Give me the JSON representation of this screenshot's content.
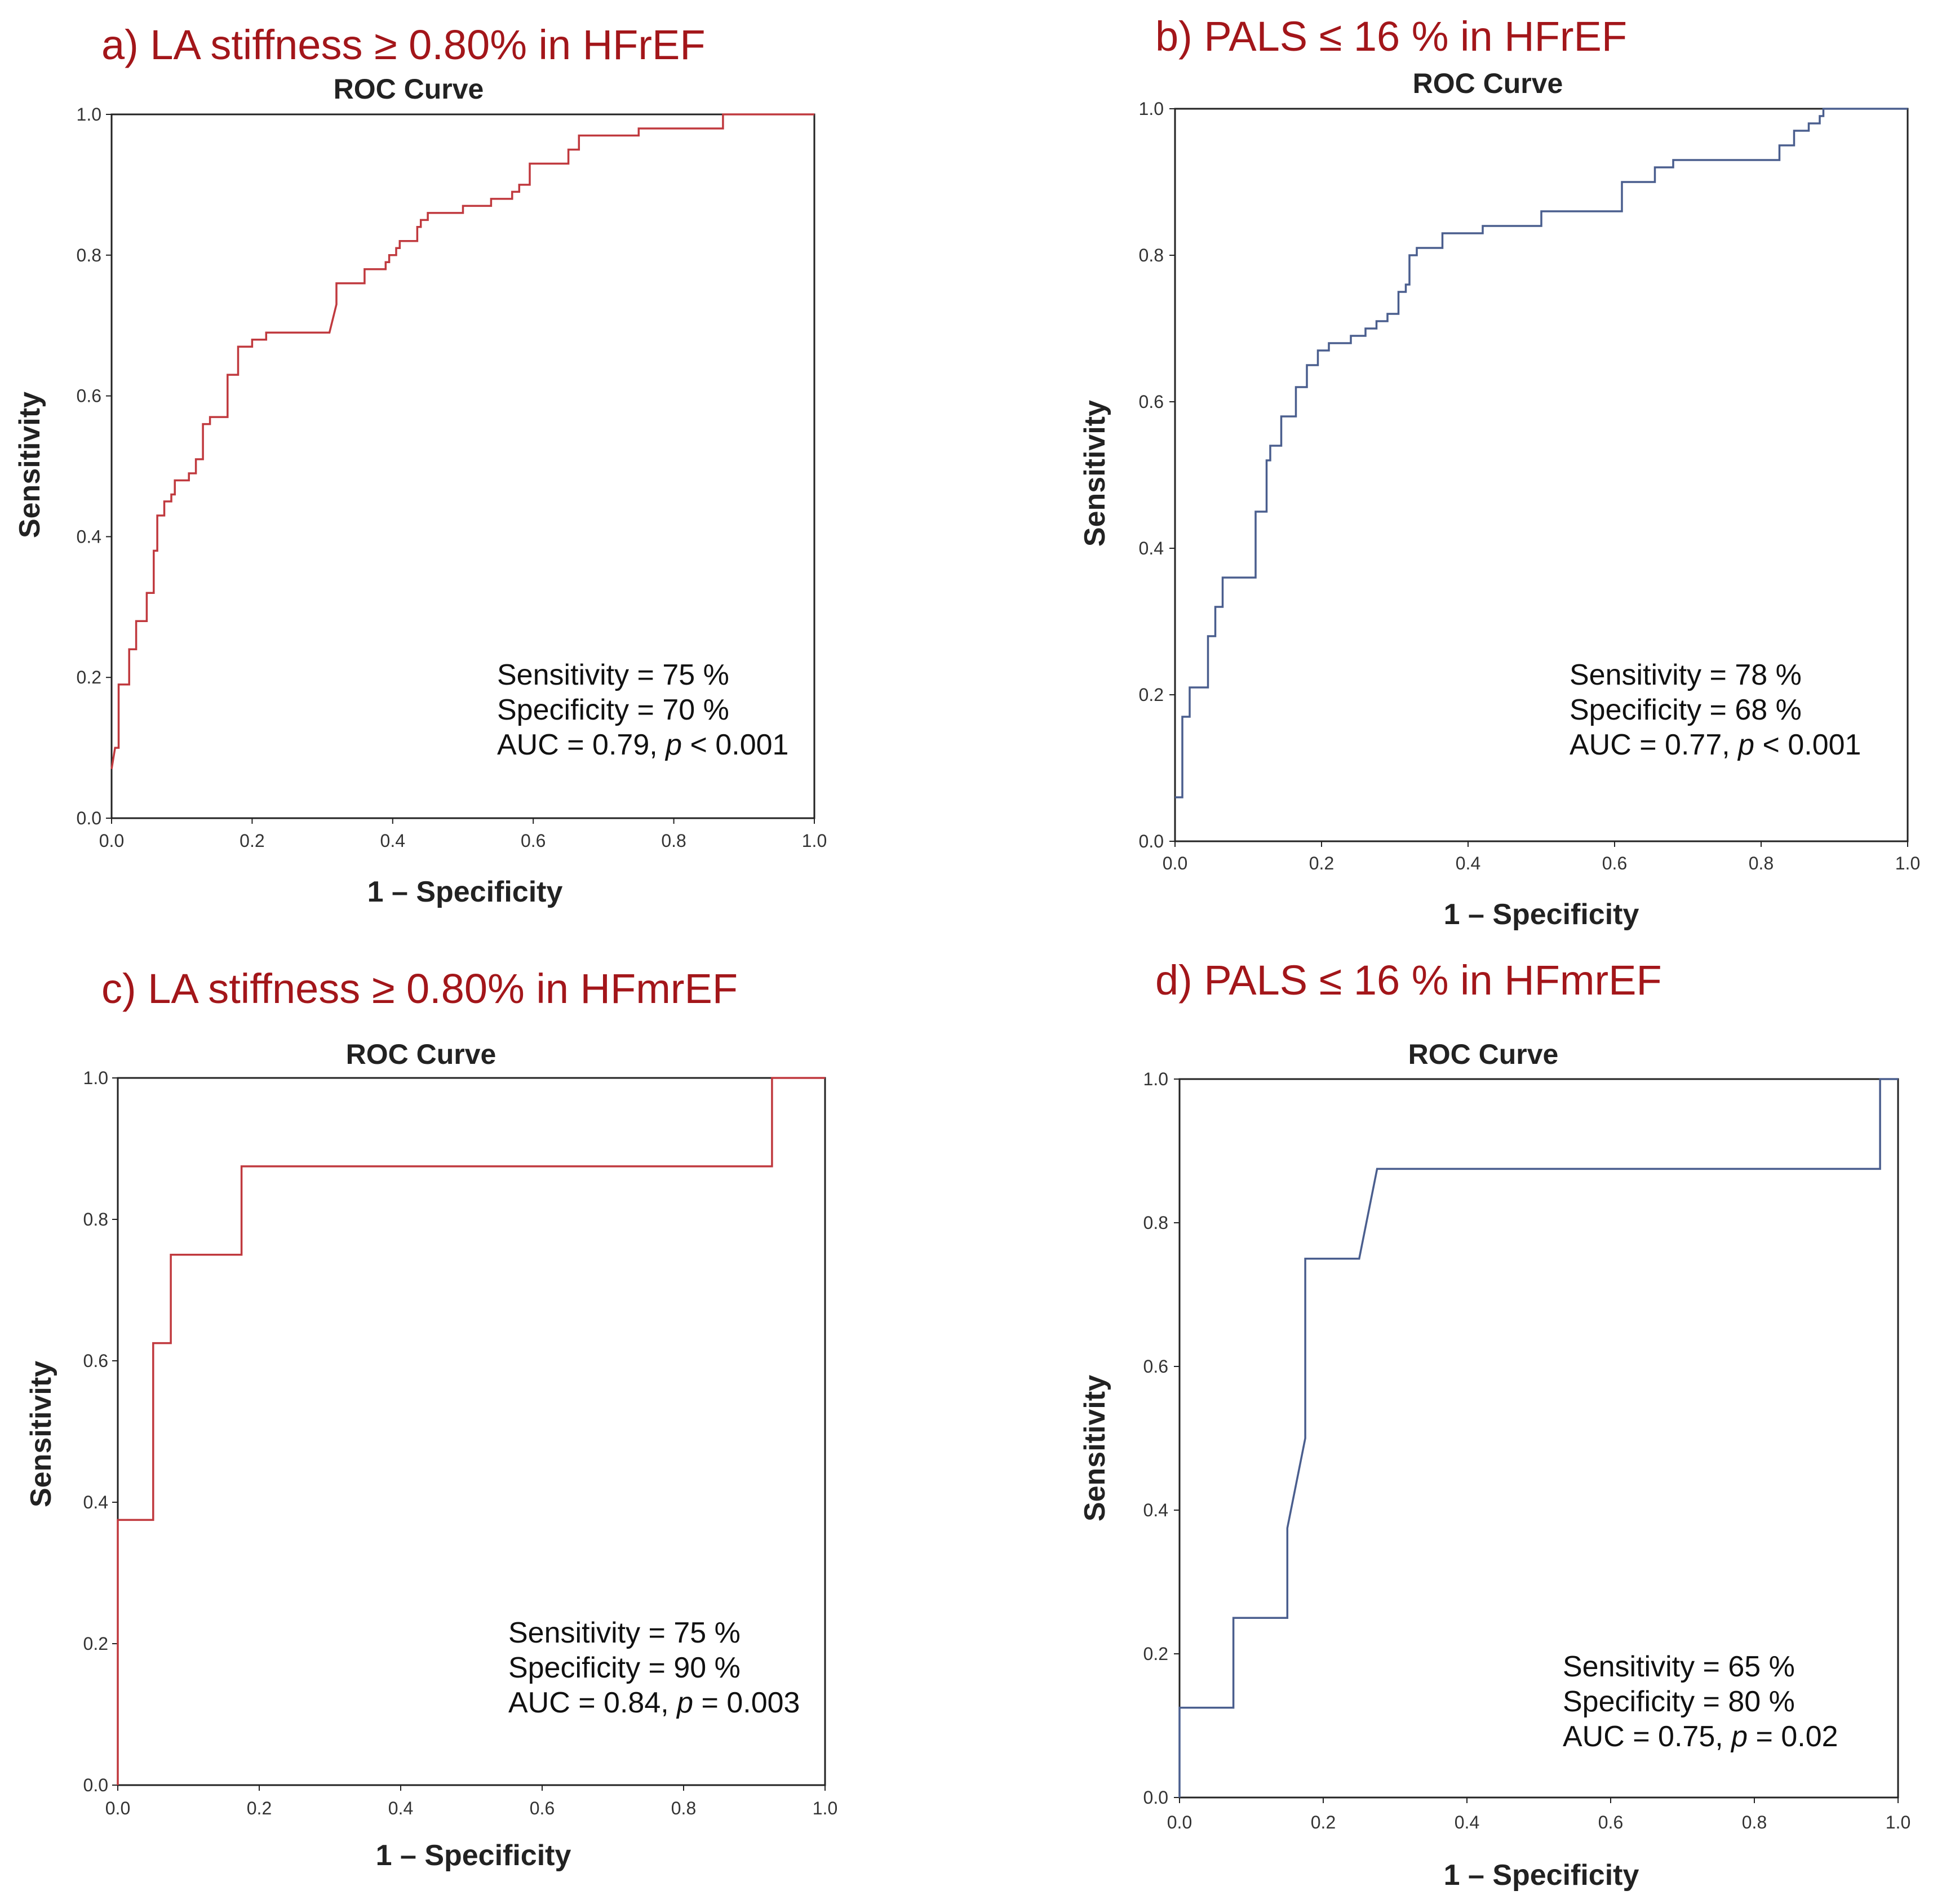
{
  "chart_data": [
    {
      "type": "line",
      "panel_title": "a) LA stiffness ≥ 0.80% in HFrEF",
      "title": "ROC Curve",
      "xlabel": "1 – Specificity",
      "ylabel": "Sensitivity",
      "xlim": [
        0,
        1
      ],
      "ylim": [
        0,
        1
      ],
      "xticks": [
        "0.0",
        "0.2",
        "0.4",
        "0.6",
        "0.8",
        "1.0"
      ],
      "yticks": [
        "0.0",
        "0.2",
        "0.4",
        "0.6",
        "0.8",
        "1.0"
      ],
      "grid": false,
      "line_color": "#c0393e",
      "series": [
        {
          "name": "LA stiffness",
          "x": [
            0.0,
            0.005,
            0.01,
            0.01,
            0.025,
            0.025,
            0.035,
            0.035,
            0.05,
            0.05,
            0.06,
            0.06,
            0.065,
            0.065,
            0.075,
            0.075,
            0.085,
            0.085,
            0.09,
            0.09,
            0.11,
            0.11,
            0.12,
            0.12,
            0.13,
            0.13,
            0.14,
            0.14,
            0.165,
            0.165,
            0.18,
            0.18,
            0.2,
            0.2,
            0.22,
            0.22,
            0.31,
            0.32,
            0.32,
            0.36,
            0.36,
            0.39,
            0.39,
            0.395,
            0.395,
            0.405,
            0.405,
            0.41,
            0.41,
            0.435,
            0.435,
            0.44,
            0.44,
            0.45,
            0.45,
            0.5,
            0.5,
            0.54,
            0.54,
            0.57,
            0.57,
            0.58,
            0.58,
            0.595,
            0.595,
            0.65,
            0.65,
            0.665,
            0.665,
            0.75,
            0.75,
            0.87,
            0.87,
            1.0
          ],
          "y": [
            0.07,
            0.1,
            0.1,
            0.19,
            0.19,
            0.24,
            0.24,
            0.28,
            0.28,
            0.32,
            0.32,
            0.38,
            0.38,
            0.43,
            0.43,
            0.45,
            0.45,
            0.46,
            0.46,
            0.48,
            0.48,
            0.49,
            0.49,
            0.51,
            0.51,
            0.56,
            0.56,
            0.57,
            0.57,
            0.63,
            0.63,
            0.67,
            0.67,
            0.68,
            0.68,
            0.69,
            0.69,
            0.73,
            0.76,
            0.76,
            0.78,
            0.78,
            0.79,
            0.79,
            0.8,
            0.8,
            0.81,
            0.81,
            0.82,
            0.82,
            0.84,
            0.84,
            0.85,
            0.85,
            0.86,
            0.86,
            0.87,
            0.87,
            0.88,
            0.88,
            0.89,
            0.89,
            0.9,
            0.9,
            0.93,
            0.93,
            0.95,
            0.95,
            0.97,
            0.97,
            0.98,
            0.98,
            1.0,
            1.0
          ]
        }
      ],
      "annotation": {
        "sensitivity": "Sensitivity = 75 %",
        "specificity": "Specificity = 70 %",
        "auc_prefix": "AUC = 0.79, ",
        "p_symbol": "p",
        "p_value": " < 0.001"
      }
    },
    {
      "type": "line",
      "panel_title": "b) PALS ≤ 16 % in HFrEF",
      "title": "ROC Curve",
      "xlabel": "1 – Specificity",
      "ylabel": "Sensitivity",
      "xlim": [
        0,
        1
      ],
      "ylim": [
        0,
        1
      ],
      "xticks": [
        "0.0",
        "0.2",
        "0.4",
        "0.6",
        "0.8",
        "1.0"
      ],
      "yticks": [
        "0.0",
        "0.2",
        "0.4",
        "0.6",
        "0.8",
        "1.0"
      ],
      "grid": false,
      "line_color": "#4a5e8e",
      "series": [
        {
          "name": "PALS",
          "x": [
            0.0,
            0.01,
            0.01,
            0.02,
            0.02,
            0.045,
            0.045,
            0.055,
            0.055,
            0.065,
            0.065,
            0.11,
            0.11,
            0.125,
            0.125,
            0.13,
            0.13,
            0.145,
            0.145,
            0.165,
            0.165,
            0.18,
            0.18,
            0.195,
            0.195,
            0.21,
            0.21,
            0.24,
            0.24,
            0.26,
            0.26,
            0.275,
            0.275,
            0.29,
            0.29,
            0.305,
            0.305,
            0.315,
            0.315,
            0.32,
            0.32,
            0.33,
            0.33,
            0.365,
            0.365,
            0.42,
            0.42,
            0.5,
            0.5,
            0.61,
            0.61,
            0.655,
            0.655,
            0.68,
            0.68,
            0.825,
            0.825,
            0.845,
            0.845,
            0.865,
            0.865,
            0.88,
            0.88,
            0.885,
            0.885,
            1.0
          ],
          "y": [
            0.06,
            0.06,
            0.17,
            0.17,
            0.21,
            0.21,
            0.28,
            0.28,
            0.32,
            0.32,
            0.36,
            0.36,
            0.45,
            0.45,
            0.52,
            0.52,
            0.54,
            0.54,
            0.58,
            0.58,
            0.62,
            0.62,
            0.65,
            0.65,
            0.67,
            0.67,
            0.68,
            0.68,
            0.69,
            0.69,
            0.7,
            0.7,
            0.71,
            0.71,
            0.72,
            0.72,
            0.75,
            0.75,
            0.76,
            0.76,
            0.8,
            0.8,
            0.81,
            0.81,
            0.83,
            0.83,
            0.84,
            0.84,
            0.86,
            0.86,
            0.9,
            0.9,
            0.92,
            0.92,
            0.93,
            0.93,
            0.95,
            0.95,
            0.97,
            0.97,
            0.98,
            0.98,
            0.99,
            0.99,
            1.0,
            1.0
          ]
        }
      ],
      "annotation": {
        "sensitivity": "Sensitivity = 78 %",
        "specificity": "Specificity = 68 %",
        "auc_prefix": "AUC = 0.77, ",
        "p_symbol": "p",
        "p_value": " < 0.001"
      }
    },
    {
      "type": "line",
      "panel_title": "c) LA stiffness ≥ 0.80% in HFmrEF",
      "title": "ROC Curve",
      "xlabel": "1 – Specificity",
      "ylabel": "Sensitivity",
      "xlim": [
        0,
        1
      ],
      "ylim": [
        0,
        1
      ],
      "xticks": [
        "0.0",
        "0.2",
        "0.4",
        "0.6",
        "0.8",
        "1.0"
      ],
      "yticks": [
        "0.0",
        "0.2",
        "0.4",
        "0.6",
        "0.8",
        "1.0"
      ],
      "grid": false,
      "line_color": "#c0393e",
      "series": [
        {
          "name": "LA stiffness",
          "x": [
            0.0,
            0.0,
            0.05,
            0.05,
            0.075,
            0.075,
            0.175,
            0.175,
            0.925,
            0.925,
            1.0
          ],
          "y": [
            0.0,
            0.375,
            0.375,
            0.625,
            0.625,
            0.75,
            0.75,
            0.875,
            0.875,
            1.0,
            1.0
          ]
        }
      ],
      "annotation": {
        "sensitivity": "Sensitivity = 75 %",
        "specificity": "Specificity = 90 %",
        "auc_prefix": "AUC = 0.84, ",
        "p_symbol": "p",
        "p_value": " = 0.003"
      }
    },
    {
      "type": "line",
      "panel_title": "d) PALS ≤ 16 % in HFmrEF",
      "title": "ROC Curve",
      "xlabel": "1 – Specificity",
      "ylabel": "Sensitivity",
      "xlim": [
        0,
        1
      ],
      "ylim": [
        0,
        1
      ],
      "xticks": [
        "0.0",
        "0.2",
        "0.4",
        "0.6",
        "0.8",
        "1.0"
      ],
      "yticks": [
        "0.0",
        "0.2",
        "0.4",
        "0.6",
        "0.8",
        "1.0"
      ],
      "grid": false,
      "line_color": "#4a5e8e",
      "series": [
        {
          "name": "PALS",
          "x": [
            0.0,
            0.0,
            0.075,
            0.075,
            0.15,
            0.15,
            0.175,
            0.175,
            0.25,
            0.275,
            0.975,
            0.975,
            1.0
          ],
          "y": [
            0.0,
            0.125,
            0.125,
            0.25,
            0.25,
            0.375,
            0.5,
            0.75,
            0.75,
            0.875,
            0.875,
            1.0,
            1.0
          ]
        }
      ],
      "annotation": {
        "sensitivity": "Sensitivity = 65 %",
        "specificity": "Specificity = 80 %",
        "auc_prefix": "AUC = 0.75, ",
        "p_symbol": "p",
        "p_value": " = 0.02"
      }
    }
  ]
}
